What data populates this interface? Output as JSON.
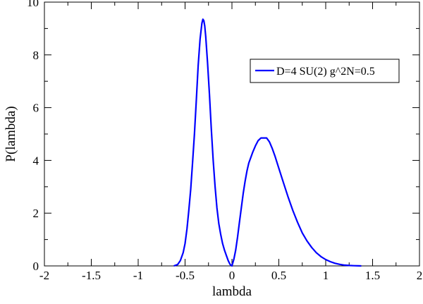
{
  "chart_data": {
    "type": "line",
    "title": "",
    "xlabel": "lambda",
    "ylabel": "P(lambda)",
    "xlim": [
      -2,
      2
    ],
    "ylim": [
      0,
      10
    ],
    "x_ticks": [
      "-2",
      "-1.5",
      "-1",
      "-0.5",
      "0",
      "0.5",
      "1",
      "1.5",
      "2"
    ],
    "y_ticks": [
      "0",
      "2",
      "4",
      "6",
      "8",
      "10"
    ],
    "grid": false,
    "legend_position": "top-right",
    "series": [
      {
        "name": "D=4 SU(2) g^2N=0.5",
        "color": "#0000ff",
        "x": [
          -0.62,
          -0.58,
          -0.55,
          -0.52,
          -0.5,
          -0.48,
          -0.46,
          -0.44,
          -0.42,
          -0.4,
          -0.38,
          -0.36,
          -0.34,
          -0.32,
          -0.31,
          -0.3,
          -0.29,
          -0.28,
          -0.26,
          -0.24,
          -0.22,
          -0.2,
          -0.18,
          -0.16,
          -0.14,
          -0.12,
          -0.1,
          -0.08,
          -0.06,
          -0.04,
          -0.02,
          0.0,
          0.02,
          0.04,
          0.06,
          0.08,
          0.1,
          0.12,
          0.14,
          0.16,
          0.18,
          0.2,
          0.22,
          0.25,
          0.28,
          0.31,
          0.34,
          0.37,
          0.4,
          0.43,
          0.46,
          0.5,
          0.55,
          0.6,
          0.65,
          0.7,
          0.75,
          0.8,
          0.85,
          0.9,
          0.95,
          1.0,
          1.05,
          1.1,
          1.15,
          1.2,
          1.25,
          1.3,
          1.35,
          1.38
        ],
        "y": [
          0.0,
          0.05,
          0.2,
          0.5,
          0.85,
          1.4,
          2.1,
          2.9,
          3.9,
          5.0,
          6.3,
          7.6,
          8.6,
          9.2,
          9.35,
          9.3,
          9.1,
          8.7,
          7.7,
          6.5,
          5.2,
          4.0,
          3.0,
          2.2,
          1.6,
          1.2,
          0.85,
          0.6,
          0.4,
          0.2,
          0.06,
          0.0,
          0.25,
          0.6,
          1.1,
          1.65,
          2.2,
          2.75,
          3.2,
          3.6,
          3.9,
          4.1,
          4.3,
          4.55,
          4.75,
          4.85,
          4.85,
          4.85,
          4.7,
          4.45,
          4.15,
          3.7,
          3.15,
          2.6,
          2.1,
          1.65,
          1.25,
          0.95,
          0.7,
          0.5,
          0.35,
          0.24,
          0.16,
          0.1,
          0.06,
          0.03,
          0.015,
          0.008,
          0.003,
          0.0
        ]
      }
    ]
  }
}
